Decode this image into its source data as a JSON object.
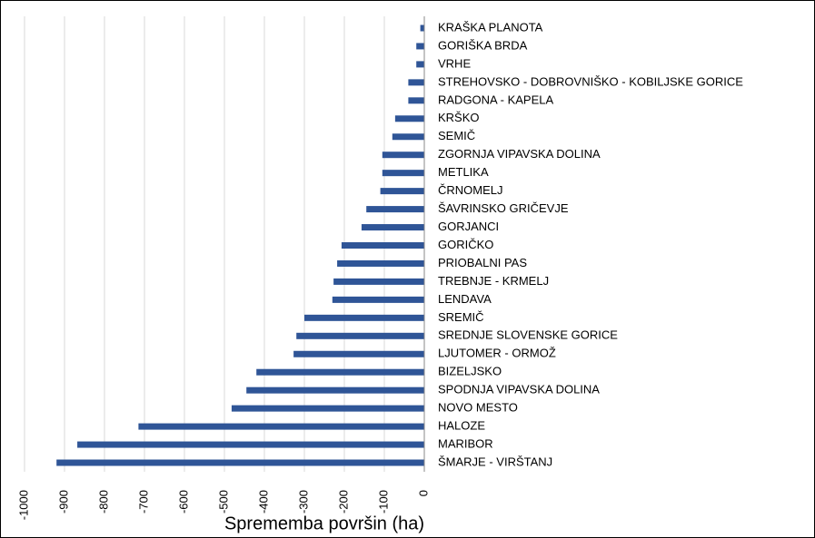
{
  "chart_data": {
    "type": "bar",
    "orientation": "horizontal",
    "x_label": "Sprememba površin (ha)",
    "categories": [
      "KRAŠKA PLANOTA",
      "GORIŠKA BRDA",
      "VRHE",
      "STREHOVSKO - DOBROVNIŠKO - KOBILJSKE GORICE",
      "RADGONA - KAPELA",
      "KRŠKO",
      "SEMIČ",
      "ZGORNJA VIPAVSKA DOLINA",
      "METLIKA",
      "ČRNOMELJ",
      "ŠAVRINSKO GRIČEVJE",
      "GORJANCI",
      "GORIČKO",
      "PRIOBALNI PAS",
      "TREBNJE - KRMELJ",
      "LENDAVA",
      "SREMIČ",
      "SREDNJE SLOVENSKE GORICE",
      "LJUTOMER - ORMOŽ",
      "BIZELJSKO",
      "SPODNJA VIPAVSKA DOLINA",
      "NOVO MESTO",
      "HALOZE",
      "MARIBOR",
      "ŠMARJE - VIRŠTANJ"
    ],
    "values": [
      -10,
      -20,
      -20,
      -40,
      -40,
      -73,
      -80,
      -105,
      -105,
      -110,
      -145,
      -157,
      -207,
      -218,
      -227,
      -230,
      -300,
      -320,
      -327,
      -420,
      -445,
      -482,
      -715,
      -868,
      -920
    ],
    "color": "#2f5597",
    "xlim": [
      -1000,
      0
    ],
    "xticks": [
      -1000,
      -900,
      -800,
      -700,
      -600,
      -500,
      -400,
      -300,
      -200,
      -100,
      0
    ],
    "grid": true
  }
}
